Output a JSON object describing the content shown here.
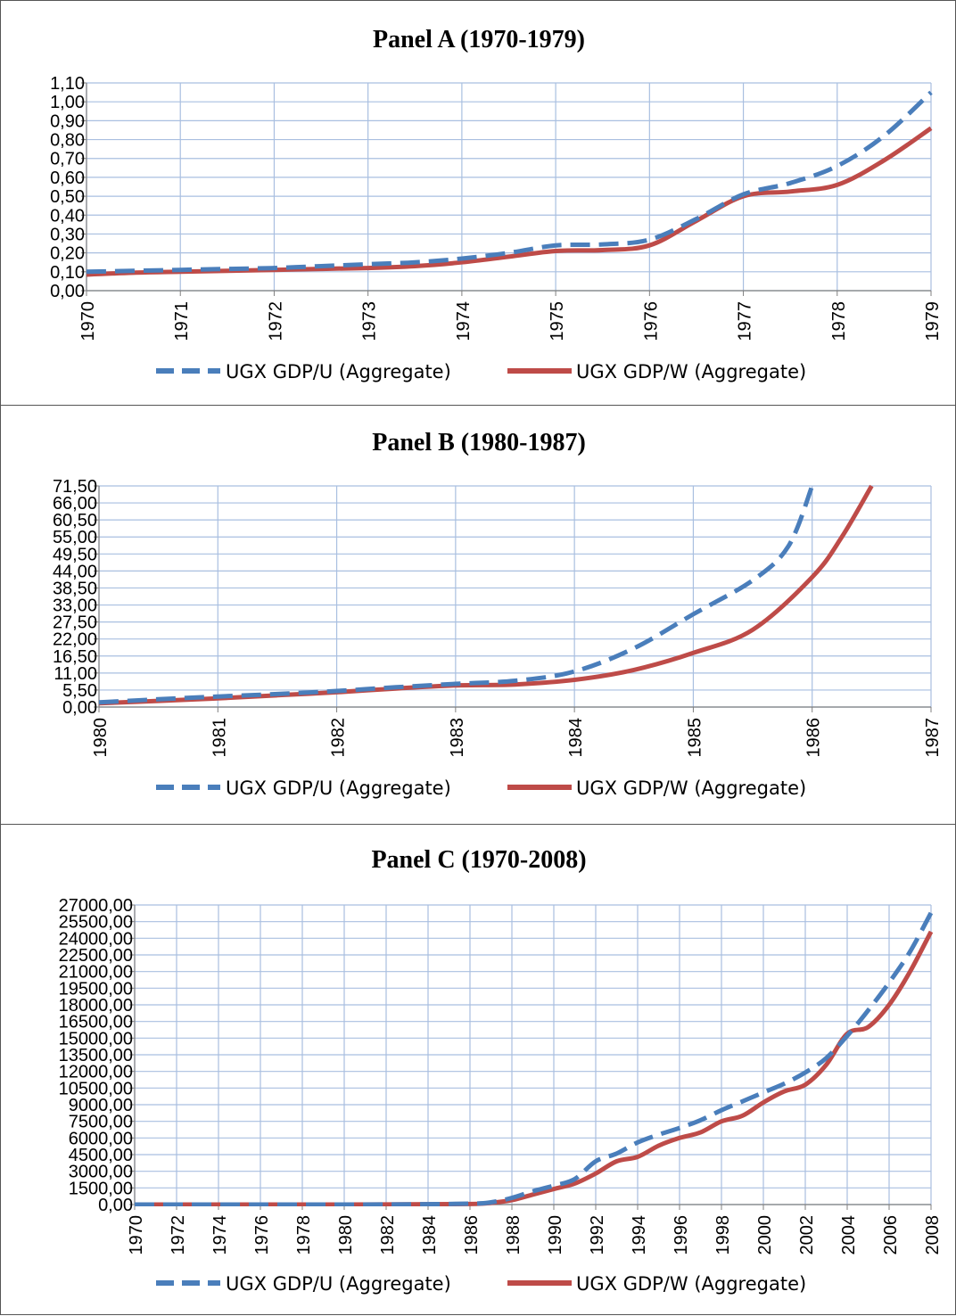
{
  "chart_data": [
    {
      "type": "line",
      "title": "Panel A (1970-1979)",
      "xlabel": "",
      "ylabel": "",
      "x_ticks": [
        "1970",
        "1971",
        "1972",
        "1973",
        "1974",
        "1975",
        "1976",
        "1977",
        "1978",
        "1979"
      ],
      "y_ticks": [
        "0,00",
        "0,10",
        "0,20",
        "0,30",
        "0,40",
        "0,50",
        "0,60",
        "0,70",
        "0,80",
        "0,90",
        "1,00",
        "1,10"
      ],
      "xlim": [
        1970,
        1979
      ],
      "ylim": [
        0,
        1.1
      ],
      "grid": true,
      "legend_position": "bottom",
      "series": [
        {
          "name": "UGX GDP/U (Aggregate)",
          "color": "#4a7ebb",
          "style": "dashed",
          "x": [
            1970,
            1970.5,
            1971,
            1971.5,
            1972,
            1972.5,
            1973,
            1973.5,
            1974,
            1974.5,
            1975,
            1975.5,
            1976,
            1976.5,
            1977,
            1977.5,
            1978,
            1978.5,
            1979
          ],
          "y": [
            0.1,
            0.105,
            0.11,
            0.115,
            0.12,
            0.13,
            0.14,
            0.15,
            0.17,
            0.2,
            0.24,
            0.245,
            0.27,
            0.38,
            0.51,
            0.57,
            0.66,
            0.82,
            1.05
          ]
        },
        {
          "name": "UGX GDP/W (Aggregate)",
          "color": "#be4b48",
          "style": "solid",
          "x": [
            1970,
            1970.5,
            1971,
            1971.5,
            1972,
            1972.5,
            1973,
            1973.5,
            1974,
            1974.5,
            1975,
            1975.5,
            1976,
            1976.5,
            1977,
            1977.5,
            1978,
            1978.5,
            1979
          ],
          "y": [
            0.085,
            0.095,
            0.1,
            0.105,
            0.11,
            0.115,
            0.12,
            0.13,
            0.15,
            0.18,
            0.21,
            0.215,
            0.24,
            0.37,
            0.5,
            0.525,
            0.56,
            0.69,
            0.86
          ]
        }
      ]
    },
    {
      "type": "line",
      "title": "Panel B (1980-1987)",
      "xlabel": "",
      "ylabel": "",
      "x_ticks": [
        "1980",
        "1981",
        "1982",
        "1983",
        "1984",
        "1985",
        "1986",
        "1987"
      ],
      "y_ticks": [
        "0,00",
        "5,50",
        "11,00",
        "16,50",
        "22,00",
        "27,50",
        "33,00",
        "38,50",
        "44,00",
        "49,50",
        "55,00",
        "60,50",
        "66,00",
        "71,50"
      ],
      "xlim": [
        1980,
        1987
      ],
      "ylim": [
        0,
        71.5
      ],
      "grid": true,
      "legend_position": "bottom",
      "series": [
        {
          "name": "UGX GDP/U (Aggregate)",
          "color": "#4a7ebb",
          "style": "dashed",
          "x": [
            1980,
            1980.5,
            1981,
            1981.5,
            1982,
            1982.5,
            1983,
            1983.5,
            1984,
            1984.5,
            1985,
            1985.5,
            1985.8,
            1986
          ],
          "y": [
            1.5,
            2.5,
            3.4,
            4.2,
            5.2,
            6.4,
            7.5,
            8.5,
            11.5,
            19.0,
            30.0,
            41.0,
            52.0,
            71.5
          ]
        },
        {
          "name": "UGX GDP/W (Aggregate)",
          "color": "#be4b48",
          "style": "solid",
          "x": [
            1980,
            1980.5,
            1981,
            1981.5,
            1982,
            1982.5,
            1983,
            1983.5,
            1984,
            1984.5,
            1985,
            1985.5,
            1986,
            1986.25,
            1986.5
          ],
          "y": [
            1.2,
            2.0,
            2.8,
            3.8,
            4.8,
            6.0,
            7.0,
            7.3,
            8.8,
            12.0,
            17.5,
            25.0,
            42.0,
            55.0,
            71.5
          ]
        }
      ]
    },
    {
      "type": "line",
      "title": "Panel C (1970-2008)",
      "xlabel": "",
      "ylabel": "",
      "x_ticks": [
        "1970",
        "1972",
        "1974",
        "1976",
        "1978",
        "1980",
        "1982",
        "1984",
        "1986",
        "1988",
        "1990",
        "1992",
        "1994",
        "1996",
        "1998",
        "2000",
        "2002",
        "2004",
        "2006",
        "2008"
      ],
      "y_ticks": [
        "0,00",
        "1500,00",
        "3000,00",
        "4500,00",
        "6000,00",
        "7500,00",
        "9000,00",
        "10500,00",
        "12000,00",
        "13500,00",
        "15000,00",
        "16500,00",
        "18000,00",
        "19500,00",
        "21000,00",
        "22500,00",
        "24000,00",
        "25500,00",
        "27000,00"
      ],
      "xlim": [
        1970,
        2008
      ],
      "ylim": [
        0,
        27000
      ],
      "grid": true,
      "legend_position": "bottom",
      "series": [
        {
          "name": "UGX GDP/U (Aggregate)",
          "color": "#4a7ebb",
          "style": "dashed",
          "x": [
            1970,
            1976,
            1982,
            1986,
            1987,
            1988,
            1989,
            1990,
            1991,
            1992,
            1993,
            1994,
            1995,
            1996,
            1997,
            1998,
            1999,
            2000,
            2001,
            2002,
            2003,
            2004,
            2005,
            2006,
            2007,
            2008
          ],
          "y": [
            0,
            1,
            10,
            80,
            200,
            600,
            1200,
            1700,
            2300,
            3900,
            4600,
            5600,
            6300,
            6900,
            7600,
            8500,
            9300,
            10100,
            10900,
            11900,
            13200,
            15200,
            17500,
            20000,
            22800,
            26300
          ]
        },
        {
          "name": "UGX GDP/W (Aggregate)",
          "color": "#be4b48",
          "style": "solid",
          "x": [
            1970,
            1976,
            1982,
            1986,
            1987,
            1988,
            1989,
            1990,
            1991,
            1992,
            1993,
            1994,
            1995,
            1996,
            1997,
            1998,
            1999,
            2000,
            2001,
            2002,
            2003,
            2004,
            2005,
            2006,
            2007,
            2008
          ],
          "y": [
            0,
            1,
            8,
            50,
            150,
            400,
            900,
            1400,
            1900,
            2800,
            3900,
            4300,
            5300,
            6000,
            6500,
            7500,
            8000,
            9200,
            10200,
            10800,
            12600,
            15400,
            16000,
            18000,
            21000,
            24600
          ]
        }
      ]
    }
  ]
}
